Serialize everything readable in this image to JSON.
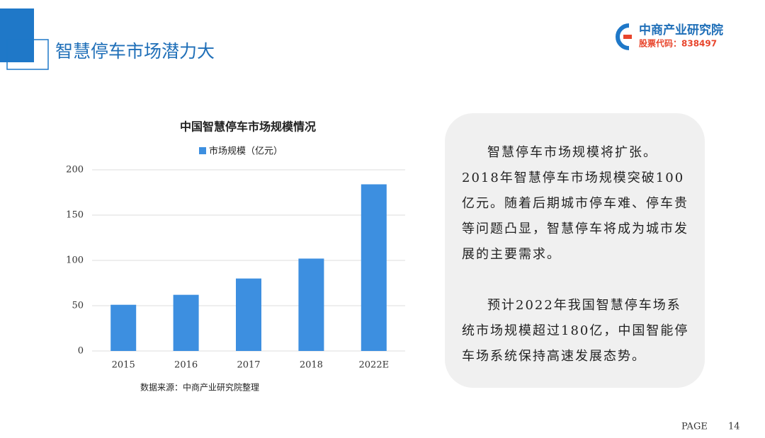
{
  "header": {
    "title": "智慧停车市场潜力大"
  },
  "logo": {
    "name": "中商产业研究院",
    "stock_code": "股票代码：838497"
  },
  "chart_data": {
    "type": "bar",
    "title": "中国智慧停车市场规模情况",
    "categories": [
      "2015",
      "2016",
      "2017",
      "2018",
      "2022E"
    ],
    "series": [
      {
        "name": "市场规模（亿元）",
        "color": "#3d8fe0",
        "values": [
          51,
          62,
          80,
          102,
          184
        ]
      }
    ],
    "ylim": [
      0,
      200
    ],
    "yticks": [
      0,
      50,
      100,
      150,
      200
    ],
    "grid": true,
    "source": "数据来源：中商产业研究院整理"
  },
  "text_box": {
    "paragraphs": [
      "智慧停车市场规模将扩张。2018年智慧停车市场规模突破100亿元。随着后期城市停车难、停车贵等问题凸显，智慧停车将成为城市发展的主要需求。",
      "预计2022年我国智慧停车场系统市场规模超过180亿，中国智能停车场系统保持高速发展态势。"
    ]
  },
  "footer": {
    "page_label": "PAGE",
    "page_number": 14
  }
}
